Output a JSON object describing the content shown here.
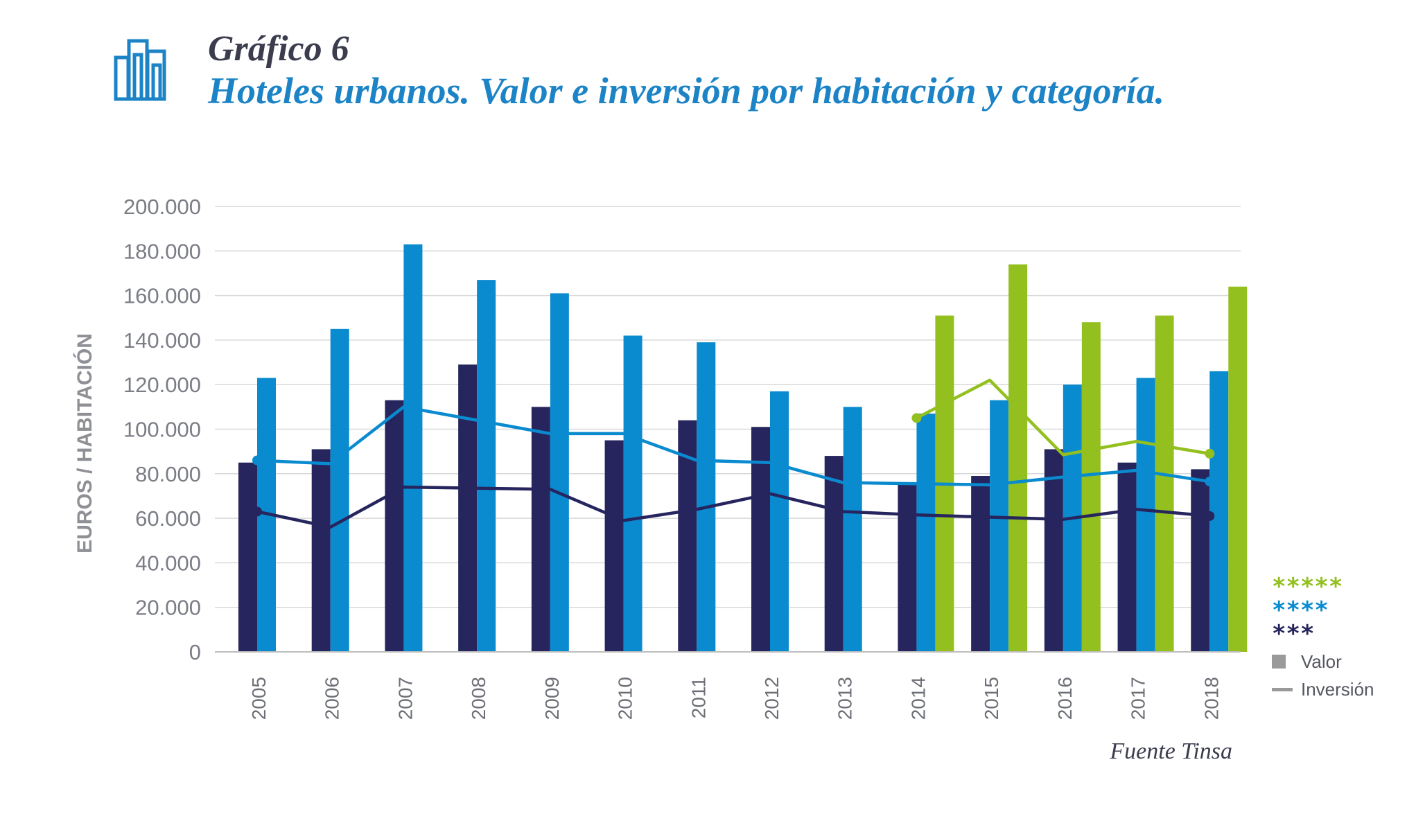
{
  "header": {
    "title": "Gráfico 6",
    "subtitle": "Hoteles urbanos. Valor e inversión por habitación y categoría."
  },
  "icons": {
    "logo": "buildings-icon"
  },
  "colors": {
    "three_star": "#27255e",
    "four_star": "#0a8bcf",
    "five_star": "#93c01f",
    "grid": "#d9d9d9",
    "legend_gray": "#9a9a9a"
  },
  "chart_data": {
    "type": "bar",
    "title": "Hoteles urbanos. Valor e inversión por habitación y categoría.",
    "xlabel": "",
    "ylabel": "EUROS / HABITACIÓN",
    "ylim": [
      0,
      200000
    ],
    "yticks": [
      0,
      20000,
      40000,
      60000,
      80000,
      100000,
      120000,
      140000,
      160000,
      180000,
      200000
    ],
    "ytick_labels": [
      "0",
      "20.000",
      "40.000",
      "60.000",
      "80.000",
      "100.000",
      "120.000",
      "140.000",
      "160.000",
      "180.000",
      "200.000"
    ],
    "categories": [
      "2005",
      "2006",
      "2007",
      "2008",
      "2009",
      "2010",
      "2011",
      "2012",
      "2013",
      "2014",
      "2015",
      "2016",
      "2017",
      "2018"
    ],
    "grid": true,
    "series": [
      {
        "name": "*** Valor",
        "kind": "bar",
        "category": "***",
        "values": [
          85000,
          91000,
          113000,
          129000,
          110000,
          95000,
          104000,
          101000,
          88000,
          75000,
          79000,
          91000,
          85000,
          82000
        ]
      },
      {
        "name": "**** Valor",
        "kind": "bar",
        "category": "****",
        "values": [
          123000,
          145000,
          183000,
          167000,
          161000,
          142000,
          139000,
          117000,
          110000,
          107000,
          113000,
          120000,
          123000,
          126000
        ]
      },
      {
        "name": "***** Valor",
        "kind": "bar",
        "category": "*****",
        "values": [
          null,
          null,
          null,
          null,
          null,
          null,
          null,
          null,
          null,
          151000,
          174000,
          148000,
          151000,
          164000
        ]
      },
      {
        "name": "*** Inversión",
        "kind": "line",
        "category": "***",
        "values": [
          63000,
          56000,
          74000,
          73500,
          73000,
          59000,
          64000,
          71000,
          63000,
          61500,
          60500,
          59500,
          64000,
          61000
        ]
      },
      {
        "name": "**** Inversión",
        "kind": "line",
        "category": "****",
        "values": [
          86000,
          84500,
          110000,
          104000,
          98000,
          98000,
          86000,
          85000,
          76000,
          75500,
          75000,
          78500,
          81500,
          76500
        ]
      },
      {
        "name": "***** Inversión",
        "kind": "line",
        "category": "*****",
        "values": [
          null,
          null,
          null,
          null,
          null,
          null,
          null,
          null,
          null,
          105000,
          122000,
          88500,
          94500,
          89000
        ]
      }
    ],
    "legend": {
      "placement": "bottom-right",
      "items": [
        {
          "label": "*****",
          "color": "#93c01f"
        },
        {
          "label": "****",
          "color": "#0a8bcf"
        },
        {
          "label": "***",
          "color": "#27255e"
        },
        {
          "label": "Valor",
          "symbol": "square"
        },
        {
          "label": "Inversión",
          "symbol": "line"
        }
      ]
    }
  },
  "footer": {
    "source": "Fuente Tinsa"
  }
}
